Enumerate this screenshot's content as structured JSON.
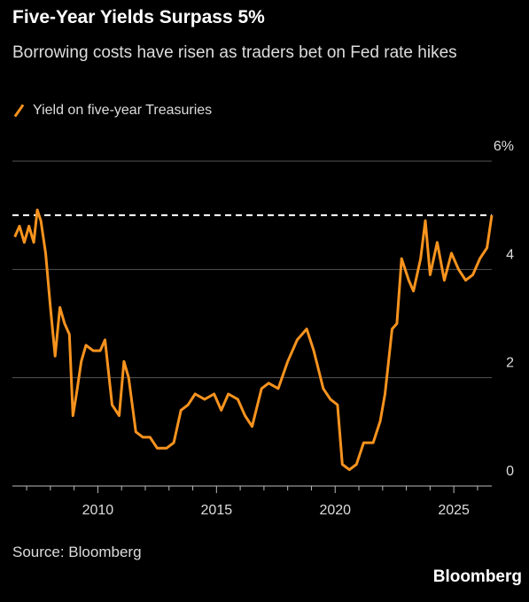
{
  "chart_data": {
    "type": "line",
    "title": "Five-Year Yields Surpass 5%",
    "subtitle": "Borrowing costs have risen as traders bet on Fed rate hikes",
    "source": "Source: Bloomberg",
    "brand": "Bloomberg",
    "x": [
      2006.5,
      2006.7,
      2006.9,
      2007.1,
      2007.3,
      2007.45,
      2007.6,
      2007.8,
      2008.0,
      2008.2,
      2008.4,
      2008.6,
      2008.8,
      2008.95,
      2009.1,
      2009.3,
      2009.5,
      2009.8,
      2010.1,
      2010.3,
      2010.6,
      2010.9,
      2011.1,
      2011.3,
      2011.6,
      2011.9,
      2012.2,
      2012.5,
      2012.9,
      2013.2,
      2013.5,
      2013.8,
      2014.1,
      2014.5,
      2014.9,
      2015.2,
      2015.5,
      2015.9,
      2016.2,
      2016.5,
      2016.9,
      2017.2,
      2017.6,
      2018.0,
      2018.4,
      2018.8,
      2019.1,
      2019.5,
      2019.8,
      2020.1,
      2020.3,
      2020.6,
      2020.9,
      2021.2,
      2021.6,
      2021.9,
      2022.1,
      2022.4,
      2022.6,
      2022.8,
      2023.1,
      2023.3,
      2023.6,
      2023.8,
      2024.0,
      2024.3,
      2024.6,
      2024.9,
      2025.2,
      2025.5,
      2025.8,
      2026.1,
      2026.4,
      2026.6
    ],
    "series": [
      {
        "name": "Yield on five-year Treasuries",
        "color": "#f7931e",
        "values": [
          4.6,
          4.8,
          4.5,
          4.8,
          4.5,
          5.1,
          4.9,
          4.3,
          3.3,
          2.4,
          3.3,
          3.0,
          2.8,
          1.3,
          1.7,
          2.3,
          2.6,
          2.5,
          2.5,
          2.7,
          1.5,
          1.3,
          2.3,
          2.0,
          1.0,
          0.9,
          0.9,
          0.7,
          0.7,
          0.8,
          1.4,
          1.5,
          1.7,
          1.6,
          1.7,
          1.4,
          1.7,
          1.6,
          1.3,
          1.1,
          1.8,
          1.9,
          1.8,
          2.3,
          2.7,
          2.9,
          2.5,
          1.8,
          1.6,
          1.5,
          0.4,
          0.3,
          0.4,
          0.8,
          0.8,
          1.2,
          1.7,
          2.9,
          3.0,
          4.2,
          3.8,
          3.6,
          4.2,
          4.9,
          3.9,
          4.5,
          3.8,
          4.3,
          4.0,
          3.8,
          3.9,
          4.2,
          4.4,
          5.0
        ]
      }
    ],
    "reference_line": 5,
    "xlim": [
      2006.4,
      2026.6
    ],
    "xticks": [
      2010,
      2015,
      2020,
      2025
    ],
    "minor_xticks": [
      2007,
      2008,
      2009,
      2011,
      2012,
      2013,
      2014,
      2016,
      2017,
      2018,
      2019,
      2021,
      2022,
      2023,
      2024,
      2026
    ],
    "ylim": [
      0,
      6
    ],
    "yticks": [
      {
        "value": 6,
        "label": "6%"
      },
      4,
      2,
      0
    ],
    "grid": true
  }
}
